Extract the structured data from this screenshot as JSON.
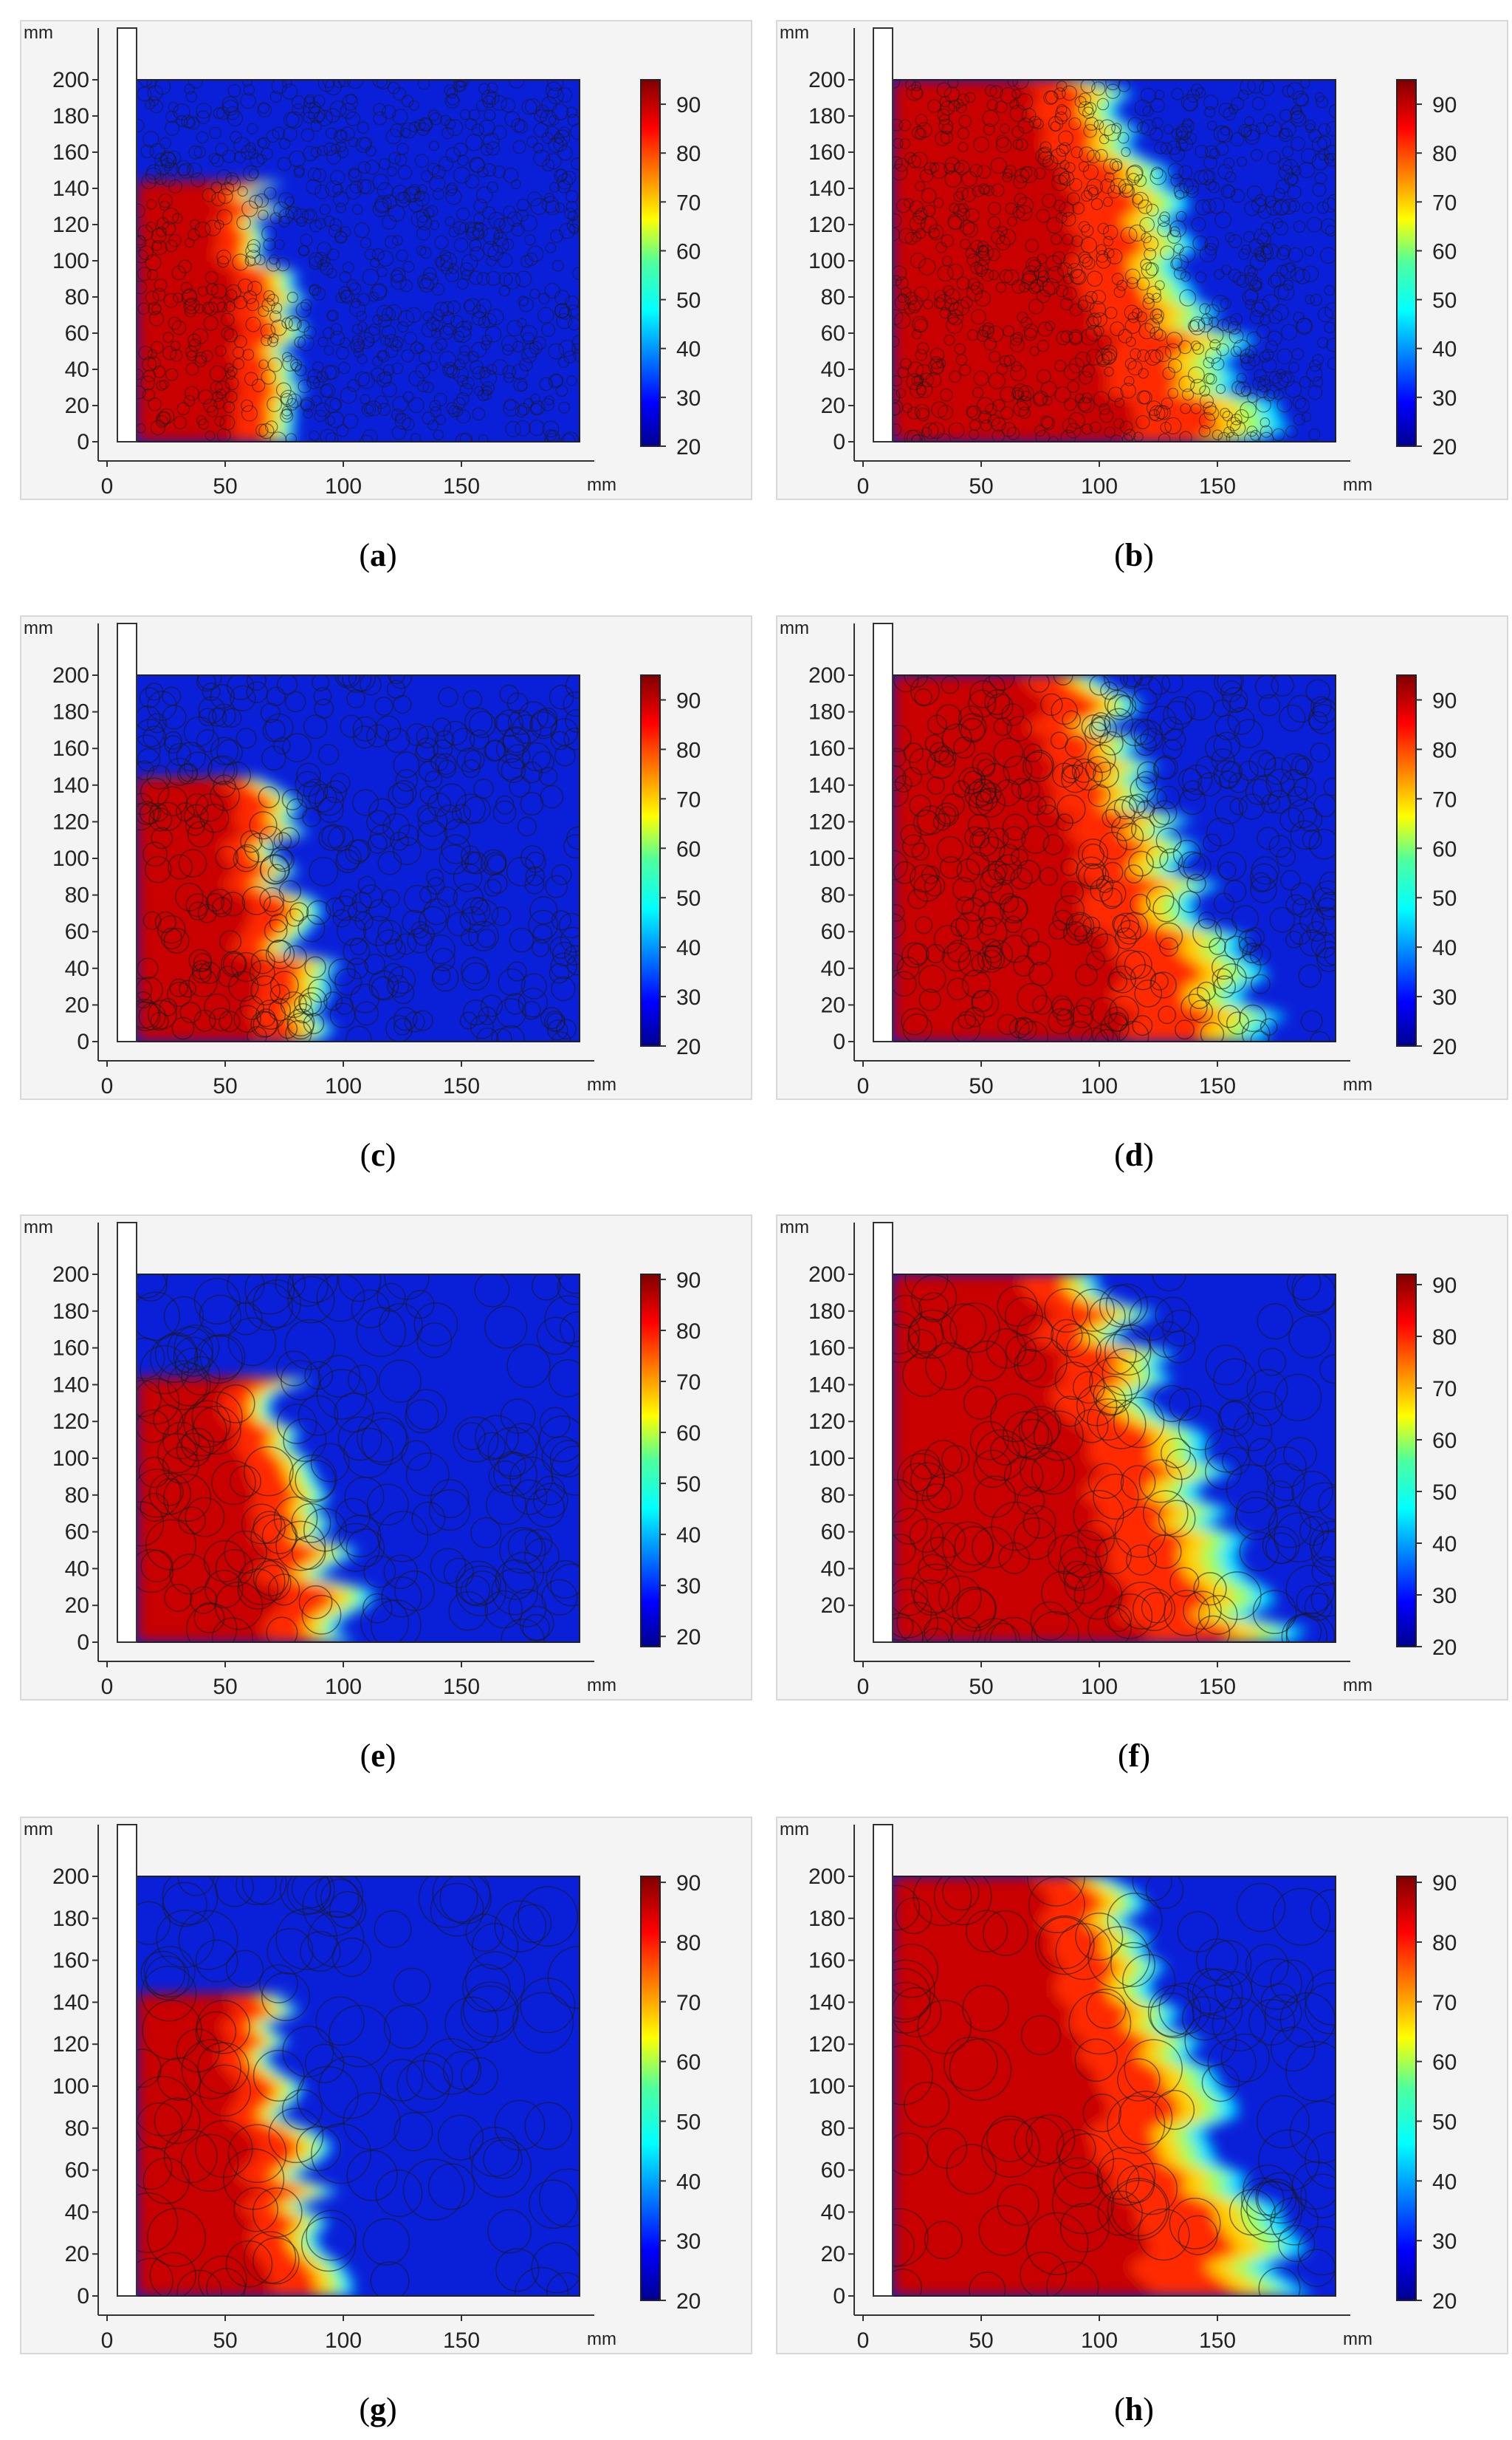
{
  "figure": {
    "panels": [
      {
        "id": "a",
        "caption": "a",
        "variant": "fine",
        "front": 0.38
      },
      {
        "id": "b",
        "caption": "b",
        "variant": "fine",
        "front": 0.78
      },
      {
        "id": "c",
        "caption": "c",
        "variant": "medium",
        "front": 0.4
      },
      {
        "id": "d",
        "caption": "d",
        "variant": "medium",
        "front": 0.78
      },
      {
        "id": "e",
        "caption": "e",
        "variant": "coarse",
        "front": 0.45
      },
      {
        "id": "f",
        "caption": "f",
        "variant": "coarse",
        "front": 0.8
      },
      {
        "id": "g",
        "caption": "g",
        "variant": "large",
        "front": 0.42
      },
      {
        "id": "h",
        "caption": "h",
        "variant": "large",
        "front": 0.82
      }
    ]
  },
  "chart_data": [
    {
      "panel": "a",
      "type": "heatmap",
      "x_unit": "mm",
      "y_unit": "mm",
      "xlim": [
        0,
        200
      ],
      "ylim": [
        0,
        200
      ],
      "x_ticks": [
        0,
        50,
        100,
        150
      ],
      "y_ticks": [
        0,
        20,
        40,
        60,
        80,
        100,
        120,
        140,
        160,
        180,
        200
      ],
      "colorbar": {
        "min": 20,
        "max": 95,
        "ticks": [
          20,
          30,
          40,
          50,
          60,
          70,
          80,
          90
        ]
      }
    },
    {
      "panel": "b",
      "type": "heatmap",
      "x_unit": "mm",
      "y_unit": "mm",
      "xlim": [
        0,
        200
      ],
      "ylim": [
        0,
        200
      ],
      "x_ticks": [
        0,
        50,
        100,
        150
      ],
      "y_ticks": [
        0,
        20,
        40,
        60,
        80,
        100,
        120,
        140,
        160,
        180,
        200
      ],
      "colorbar": {
        "min": 20,
        "max": 95,
        "ticks": [
          20,
          30,
          40,
          50,
          60,
          70,
          80,
          90
        ]
      }
    },
    {
      "panel": "c",
      "type": "heatmap",
      "x_unit": "mm",
      "y_unit": "mm",
      "xlim": [
        0,
        200
      ],
      "ylim": [
        0,
        200
      ],
      "x_ticks": [
        0,
        50,
        100,
        150
      ],
      "y_ticks": [
        0,
        20,
        40,
        60,
        80,
        100,
        120,
        140,
        160,
        180,
        200
      ],
      "colorbar": {
        "min": 20,
        "max": 95,
        "ticks": [
          20,
          30,
          40,
          50,
          60,
          70,
          80,
          90
        ]
      }
    },
    {
      "panel": "d",
      "type": "heatmap",
      "x_unit": "mm",
      "y_unit": "mm",
      "xlim": [
        0,
        200
      ],
      "ylim": [
        0,
        200
      ],
      "x_ticks": [
        0,
        50,
        100,
        150
      ],
      "y_ticks": [
        0,
        20,
        40,
        60,
        80,
        100,
        120,
        140,
        160,
        180,
        200
      ],
      "colorbar": {
        "min": 20,
        "max": 95,
        "ticks": [
          20,
          30,
          40,
          50,
          60,
          70,
          80,
          90
        ]
      }
    },
    {
      "panel": "e",
      "type": "heatmap",
      "x_unit": "mm",
      "y_unit": "mm",
      "xlim": [
        0,
        200
      ],
      "ylim": [
        0,
        200
      ],
      "x_ticks": [
        0,
        50,
        100,
        150
      ],
      "y_ticks": [
        0,
        20,
        40,
        60,
        80,
        100,
        120,
        140,
        160,
        180,
        200
      ],
      "colorbar": {
        "min": 18,
        "max": 91,
        "ticks": [
          20,
          30,
          40,
          50,
          60,
          70,
          80,
          90
        ]
      }
    },
    {
      "panel": "f",
      "type": "heatmap",
      "x_unit": "mm",
      "y_unit": "mm",
      "xlim": [
        0,
        200
      ],
      "ylim": [
        0,
        200
      ],
      "x_ticks": [
        0,
        50,
        100,
        150
      ],
      "y_ticks": [
        20,
        40,
        60,
        80,
        100,
        120,
        140,
        160,
        180,
        200
      ],
      "colorbar": {
        "min": 20,
        "max": 92,
        "ticks": [
          20,
          30,
          40,
          50,
          60,
          70,
          80,
          90
        ]
      }
    },
    {
      "panel": "g",
      "type": "heatmap",
      "x_unit": "mm",
      "y_unit": "mm",
      "xlim": [
        0,
        200
      ],
      "ylim": [
        0,
        200
      ],
      "x_ticks": [
        0,
        50,
        100,
        150
      ],
      "y_ticks": [
        0,
        20,
        40,
        60,
        80,
        100,
        120,
        140,
        160,
        180,
        200
      ],
      "colorbar": {
        "min": 20,
        "max": 91,
        "ticks": [
          20,
          30,
          40,
          50,
          60,
          70,
          80,
          90
        ]
      }
    },
    {
      "panel": "h",
      "type": "heatmap",
      "x_unit": "mm",
      "y_unit": "mm",
      "xlim": [
        0,
        200
      ],
      "ylim": [
        0,
        200
      ],
      "x_ticks": [
        0,
        50,
        100,
        150
      ],
      "y_ticks": [
        0,
        20,
        40,
        60,
        80,
        100,
        120,
        140,
        160,
        180,
        200
      ],
      "colorbar": {
        "min": 20,
        "max": 91,
        "ticks": [
          20,
          30,
          40,
          50,
          60,
          70,
          80,
          90
        ]
      }
    }
  ]
}
